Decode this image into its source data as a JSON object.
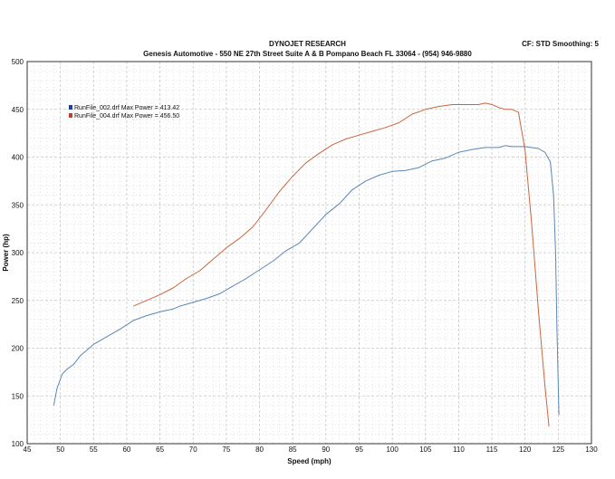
{
  "header": {
    "title": "DYNOJET RESEARCH",
    "subtitle": "Genesis Automotive - 550 NE 27th Street Suite A & B Pompano Beach FL 33064 - (954) 946-9880",
    "cf_info": "CF: STD   Smoothing: 5"
  },
  "colors": {
    "series_blue": "#5a86b8",
    "series_red": "#c9663f",
    "marker_blue": "#1f3f9a",
    "marker_red": "#c23b2b",
    "grid": "#c8c8c8"
  },
  "chart_data": {
    "type": "line",
    "xlabel": "Speed (mph)",
    "ylabel": "Power (hp)",
    "xlim": [
      45,
      130
    ],
    "ylim": [
      100,
      500
    ],
    "xticks": [
      45,
      50,
      55,
      60,
      65,
      70,
      75,
      80,
      85,
      90,
      95,
      100,
      105,
      110,
      115,
      120,
      125,
      130
    ],
    "yticks": [
      100,
      150,
      200,
      250,
      300,
      350,
      400,
      450,
      500
    ],
    "grid": true,
    "legend_position": "top-left",
    "series": [
      {
        "name": "RunFile_002.drf Max Power = 413.42",
        "color": "#5a86b8",
        "x": [
          49,
          49.5,
          50.3,
          51,
          52,
          53,
          54,
          55,
          57,
          59,
          61,
          63,
          65,
          67,
          68,
          70,
          72,
          74,
          76,
          78,
          80,
          82,
          84,
          86,
          88,
          90,
          92,
          94,
          96,
          98,
          100,
          102,
          104,
          106,
          108,
          110,
          112,
          114,
          116,
          117,
          118,
          120,
          122,
          123,
          123.8,
          124.3,
          124.6,
          124.8,
          125,
          125.1
        ],
        "y": [
          140,
          158,
          173,
          178,
          183,
          192,
          198,
          204,
          212,
          220,
          229,
          234,
          238,
          241,
          244,
          248,
          252,
          257,
          265,
          273,
          282,
          291,
          302,
          310,
          325,
          340,
          351,
          366,
          375,
          381,
          385,
          386,
          389,
          396,
          399,
          405,
          408,
          410,
          410,
          412,
          411,
          411,
          409,
          405,
          395,
          360,
          300,
          220,
          160,
          130
        ]
      },
      {
        "name": "RunFile_004.drf Max Power = 456.50",
        "color": "#c9663f",
        "x": [
          61,
          63,
          65,
          67,
          69,
          71,
          73,
          75,
          77,
          79,
          81,
          83,
          85,
          87,
          89,
          91,
          93,
          95,
          97,
          99,
          101,
          103,
          105,
          107,
          109,
          111,
          113,
          114,
          115,
          116,
          117,
          118,
          119,
          120,
          121,
          122,
          123,
          123.6
        ],
        "y": [
          244,
          250,
          256,
          263,
          273,
          281,
          293,
          305,
          315,
          327,
          345,
          364,
          380,
          394,
          404,
          413,
          419,
          423,
          427,
          431,
          436,
          445,
          450,
          453,
          455,
          455,
          455,
          456.5,
          455,
          452,
          450,
          450,
          447,
          407,
          330,
          240,
          160,
          118
        ]
      }
    ]
  }
}
